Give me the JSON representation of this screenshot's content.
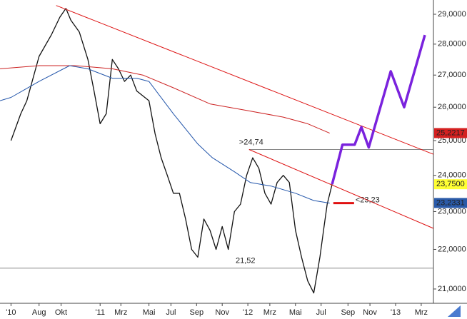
{
  "chart_data": {
    "type": "line",
    "log_y": true,
    "xlim": [
      -3.2,
      32.3
    ],
    "ylim": [
      20.65,
      29.49
    ],
    "yticks": [
      {
        "value": 21,
        "label": "21,0000"
      },
      {
        "value": 22,
        "label": "22,0000"
      },
      {
        "value": 23,
        "label": "23,0000"
      },
      {
        "value": 24,
        "label": "24,0000"
      },
      {
        "value": 25,
        "label": "25,0000"
      },
      {
        "value": 26,
        "label": "26,0000"
      },
      {
        "value": 27,
        "label": "27,0000"
      },
      {
        "value": 28,
        "label": "28,0000"
      },
      {
        "value": 29,
        "label": "29,0000"
      }
    ],
    "xticks": [
      {
        "value": -2.3,
        "label": "'10"
      },
      {
        "value": 0,
        "label": "Aug"
      },
      {
        "value": 1.8,
        "label": "Okt"
      },
      {
        "value": 5,
        "label": "'11"
      },
      {
        "value": 6.7,
        "label": "Mrz"
      },
      {
        "value": 9,
        "label": "Mai"
      },
      {
        "value": 10.8,
        "label": "Jul"
      },
      {
        "value": 12.9,
        "label": "Sep"
      },
      {
        "value": 15,
        "label": "Nov"
      },
      {
        "value": 17.1,
        "label": "'12"
      },
      {
        "value": 18.9,
        "label": "Mrz"
      },
      {
        "value": 21,
        "label": "Mai"
      },
      {
        "value": 23.1,
        "label": "Jul"
      },
      {
        "value": 25.3,
        "label": "Sep"
      },
      {
        "value": 27.1,
        "label": "Nov"
      },
      {
        "value": 29.2,
        "label": "'13"
      },
      {
        "value": 31.3,
        "label": "Mrz"
      }
    ],
    "series": [
      {
        "color": "#111111",
        "width": 1.3,
        "x": [
          -2.3,
          -1.5,
          -1,
          0,
          1,
          1.7,
          2.2,
          2.6,
          3.3,
          4,
          4.5,
          5,
          5.5,
          6,
          6.5,
          7,
          7.5,
          8,
          9,
          9.5,
          10,
          10.5,
          11,
          11.5,
          12,
          12.5,
          13,
          13.5,
          14,
          14.5,
          15,
          15.5,
          16,
          16.5,
          17,
          17.5,
          18,
          18.5,
          19,
          19.5,
          20,
          20.5,
          21,
          21.5,
          22,
          22.5,
          23,
          23.3,
          23.6,
          24
        ],
        "values": [
          25.0,
          25.8,
          26.2,
          27.6,
          28.3,
          28.9,
          29.2,
          28.8,
          28.4,
          27.5,
          26.5,
          25.5,
          25.8,
          27.5,
          27.2,
          26.8,
          27.0,
          26.5,
          26.2,
          25.2,
          24.5,
          24.0,
          23.5,
          23.5,
          22.8,
          22.0,
          21.8,
          22.8,
          22.5,
          22.0,
          22.6,
          22.0,
          23.0,
          23.2,
          24.0,
          24.5,
          24.2,
          23.5,
          23.2,
          23.8,
          24.0,
          23.8,
          22.5,
          21.8,
          21.2,
          20.9,
          21.8,
          22.5,
          23.2,
          23.75
        ]
      },
      {
        "color": "#cc2222",
        "width": 1,
        "x": [
          -3.2,
          0,
          3,
          6,
          8.5,
          11,
          14,
          17,
          20,
          22,
          23.8
        ],
        "values": [
          27.2,
          27.3,
          27.3,
          27.2,
          27.0,
          26.6,
          26.1,
          25.9,
          25.7,
          25.5,
          25.22
        ]
      },
      {
        "color": "#2255aa",
        "width": 1,
        "x": [
          -3.2,
          -2.3,
          0,
          2.5,
          4,
          6,
          8,
          9,
          11,
          13,
          14.2,
          16,
          17.3,
          19,
          21,
          22.5,
          23.8
        ],
        "values": [
          26.2,
          26.3,
          26.8,
          27.3,
          27.2,
          26.9,
          26.9,
          26.8,
          25.8,
          24.9,
          24.5,
          24.1,
          23.8,
          23.7,
          23.5,
          23.3,
          23.23
        ]
      },
      {
        "color": "#dd1111",
        "width": 1,
        "x": [
          1.4,
          32.3
        ],
        "values": [
          29.3,
          24.6
        ]
      },
      {
        "color": "#dd1111",
        "width": 1,
        "x": [
          17.2,
          32.3
        ],
        "values": [
          24.74,
          22.55
        ]
      },
      {
        "color": "#7a22dd",
        "width": 3.5,
        "x": [
          24.0,
          24.85,
          25.85,
          26.4,
          27.0,
          28.8,
          29.9,
          31.6
        ],
        "values": [
          23.75,
          24.88,
          24.88,
          25.4,
          24.8,
          27.12,
          26.0,
          28.3
        ]
      }
    ],
    "levels": [
      {
        "value": 24.74,
        "label": ">24,74",
        "color": "#3a62c0",
        "line": "#888888",
        "from": 17.2
      },
      {
        "value": 21.52,
        "label": "21,52",
        "color": "#777777",
        "line": "#888888",
        "from": -3.2
      },
      {
        "value": 23.23,
        "label": "<23,23",
        "color": "#e01010",
        "line": "#e01010",
        "from": 24.1,
        "to": 25.8
      }
    ],
    "price_tags": [
      {
        "value": 25.2217,
        "label": "25,2217",
        "bg": "#d42020",
        "fg": "#ffffff"
      },
      {
        "value": 23.75,
        "label": "23,7500",
        "bg": "#ffff33",
        "fg": "#000000"
      },
      {
        "value": 23.2331,
        "label": "23,2331",
        "bg": "#2a5aa8",
        "fg": "#ffffff"
      }
    ]
  }
}
